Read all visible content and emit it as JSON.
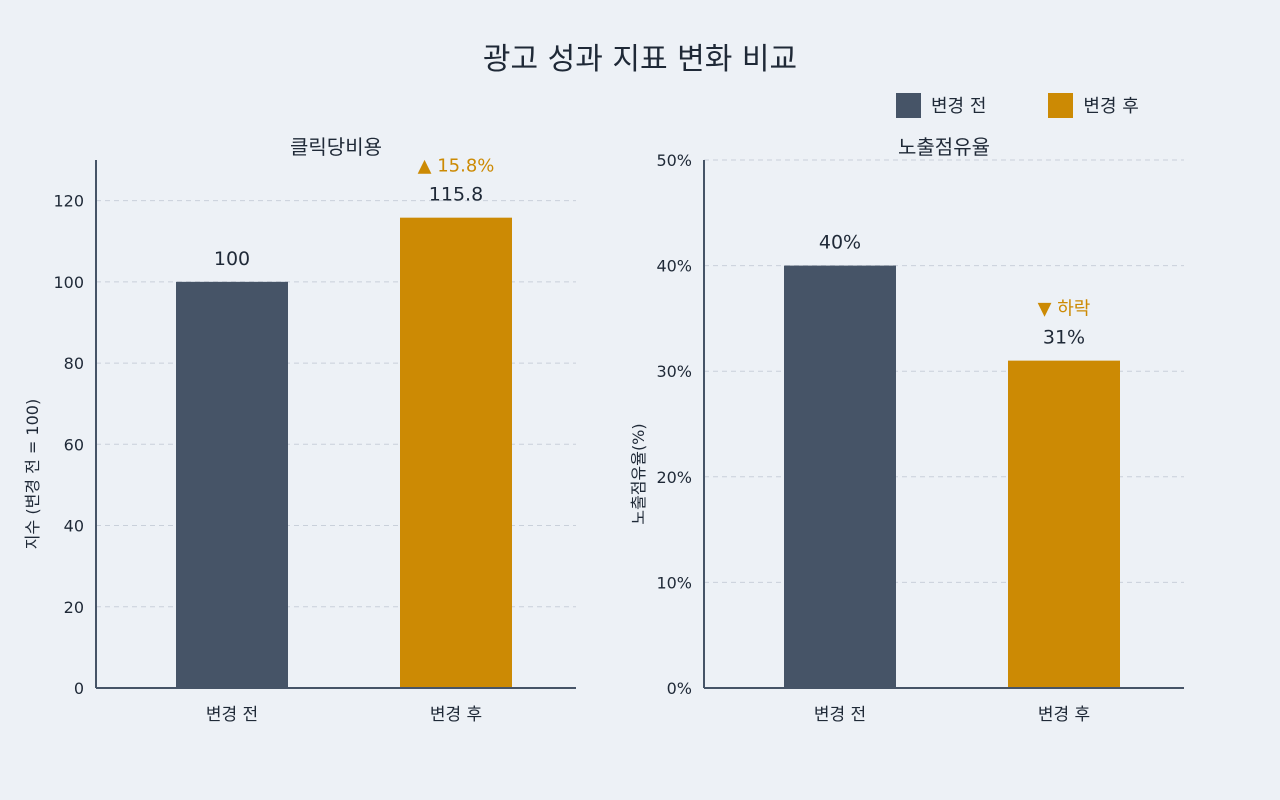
{
  "title": "광고 성과 지표 변화 비교",
  "legend": [
    {
      "label": "변경 전",
      "color": "#465467"
    },
    {
      "label": "변경 후",
      "color": "#cc8a04"
    }
  ],
  "chart_data": [
    {
      "type": "bar",
      "title": "클릭당비용",
      "categories": [
        "변경 전",
        "변경 후"
      ],
      "series": [
        {
          "values": [
            100,
            115.8
          ]
        }
      ],
      "value_labels": [
        "100",
        "115.8"
      ],
      "ylabel": "지수 (변경 전 = 100)",
      "ylim": [
        0,
        130
      ],
      "yticks": [
        0,
        20,
        40,
        60,
        80,
        100,
        120
      ],
      "ytick_labels": [
        "0",
        "20",
        "40",
        "60",
        "80",
        "100",
        "120"
      ],
      "grid": true,
      "annotation": {
        "text": "▲ 15.8%",
        "category": "변경 후",
        "color": "#cc8a04"
      }
    },
    {
      "type": "bar",
      "title": "노출점유율",
      "categories": [
        "변경 전",
        "변경 후"
      ],
      "series": [
        {
          "values": [
            40,
            31
          ]
        }
      ],
      "value_labels": [
        "40%",
        "31%"
      ],
      "ylabel": "노출점유율(%)",
      "ylim": [
        0,
        50
      ],
      "yticks": [
        0,
        10,
        20,
        30,
        40,
        50
      ],
      "ytick_labels": [
        "0%",
        "10%",
        "20%",
        "30%",
        "40%",
        "50%"
      ],
      "grid": true,
      "annotation": {
        "text": "▼ 하락",
        "category": "변경 후",
        "color": "#cc8a04"
      }
    }
  ]
}
